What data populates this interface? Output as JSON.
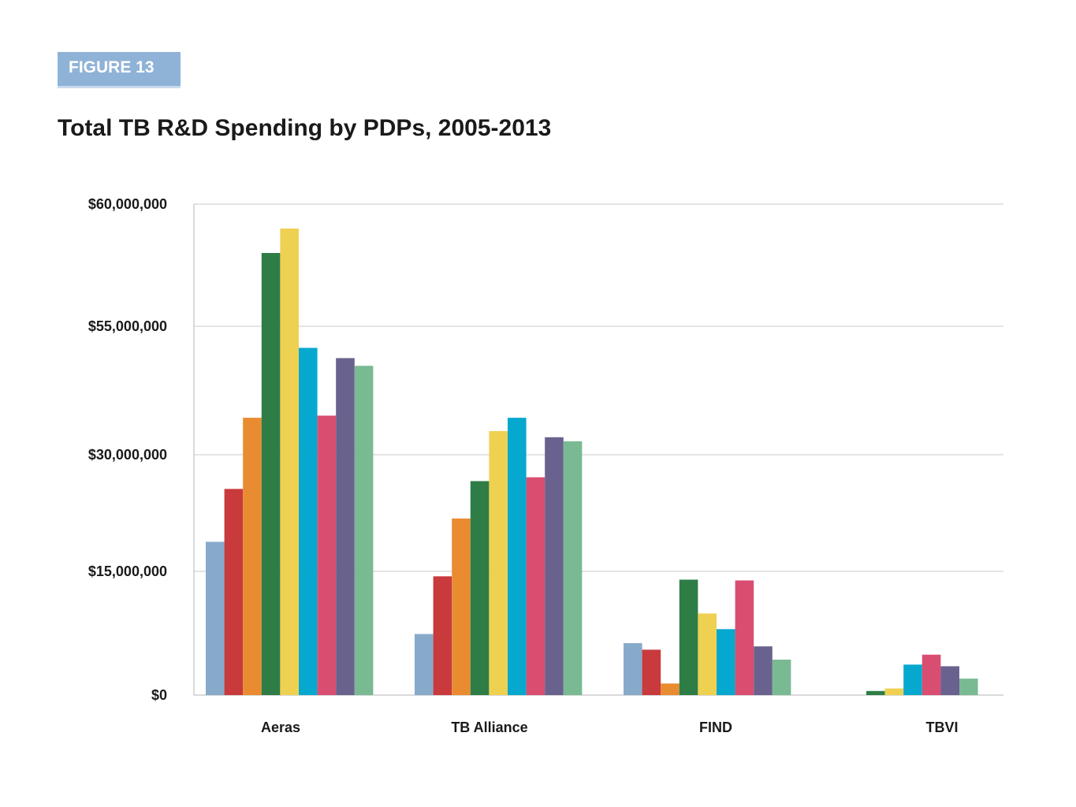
{
  "figure_tag": "FIGURE 13",
  "chart_data": {
    "type": "bar",
    "title": "Total TB R&D Spending by PDPs, 2005-2013",
    "xlabel": "",
    "ylabel": "",
    "categories": [
      "Aeras",
      "TB Alliance",
      "FIND",
      "TBVI"
    ],
    "y_ticks": [
      {
        "value": 0,
        "label": "$0"
      },
      {
        "value": 15000000,
        "label": "$15,000,000"
      },
      {
        "value": 30000000,
        "label": "$30,000,000"
      },
      {
        "value": 55000000,
        "label": "$55,000,000"
      },
      {
        "value": 60000000,
        "label": "$60,000,000"
      }
    ],
    "grid": true,
    "legend": "none",
    "series": [
      {
        "color": "#87aacb",
        "values": [
          18800000,
          7400000,
          6300000,
          null
        ]
      },
      {
        "color": "#c83a3c",
        "values": [
          25600000,
          14400000,
          5500000,
          null
        ]
      },
      {
        "color": "#e98b31",
        "values": [
          37200000,
          21800000,
          1400000,
          null
        ]
      },
      {
        "color": "#2e7d46",
        "values": [
          58000000,
          26600000,
          14000000,
          500000
        ]
      },
      {
        "color": "#efd152",
        "values": [
          59000000,
          34600000,
          9900000,
          800000
        ]
      },
      {
        "color": "#06a8cf",
        "values": [
          50800000,
          37200000,
          8000000,
          3700000
        ]
      },
      {
        "color": "#d94d71",
        "values": [
          37600000,
          27100000,
          13900000,
          4900000
        ]
      },
      {
        "color": "#69628e",
        "values": [
          48800000,
          33400000,
          5900000,
          3500000
        ]
      },
      {
        "color": "#7aba93",
        "values": [
          47300000,
          32600000,
          4300000,
          2000000
        ]
      }
    ]
  }
}
